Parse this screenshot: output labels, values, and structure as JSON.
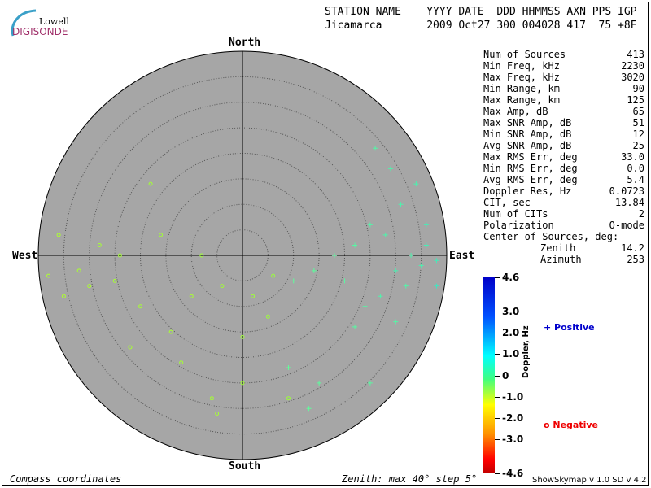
{
  "logo": {
    "line1": "Lowell",
    "line2": "DIGISONDE"
  },
  "header": {
    "labels": "STATION NAME    YYYY DATE  DDD HHMMSS AXN PPS IGP",
    "values": "Jicamarca       2009 Oct27 300 004028 417  75 +8F"
  },
  "compass": {
    "north": "North",
    "south": "South",
    "east": "East",
    "west": "West"
  },
  "stats": [
    [
      "Num of Sources",
      "413"
    ],
    [
      "Min Freq, kHz",
      "2230"
    ],
    [
      "Max Freq, kHz",
      "3020"
    ],
    [
      "Min Range, km",
      "90"
    ],
    [
      "Max Range, km",
      "125"
    ],
    [
      "Max Amp, dB",
      "65"
    ],
    [
      "Max SNR Amp, dB",
      "51"
    ],
    [
      "Min SNR Amp, dB",
      "12"
    ],
    [
      "Avg SNR Amp, dB",
      "25"
    ],
    [
      "Max RMS Err, deg",
      "33.0"
    ],
    [
      "Min RMS Err, deg",
      "0.0"
    ],
    [
      "Avg RMS Err, deg",
      "5.4"
    ],
    [
      "Doppler Res, Hz",
      "0.0723"
    ],
    [
      "CIT, sec",
      "13.84"
    ],
    [
      "Num of CITs",
      "2"
    ],
    [
      "Polarization",
      "O-mode"
    ]
  ],
  "center": {
    "title": "Center of Sources, deg:",
    "zenith_label": "Zenith",
    "zenith": "14.2",
    "azimuth_label": "Azimuth",
    "azimuth": "253"
  },
  "colorbar": {
    "title": "Doppler, Hz",
    "ticks": [
      "4.6",
      "3.0",
      "2.0",
      "1.0",
      "0",
      "-1.0",
      "-2.0",
      "-3.0",
      "-4.6"
    ]
  },
  "legend": {
    "positive": "Positive",
    "negative": "Negative",
    "positive_color": "#0000cc",
    "negative_color": "#ee0000"
  },
  "footer": {
    "left": "Compass coordinates",
    "mid": "Zenith: max 40°  step 5°",
    "right": "ShowSkymap v 1.0   SD v 4.2"
  },
  "chart_data": {
    "type": "scatter",
    "zenith_max": 40,
    "zenith_step": 5,
    "points_east_north_deg": [
      [
        30,
        -3,
        1.2
      ],
      [
        33,
        0,
        1.0
      ],
      [
        35,
        -2,
        1.1
      ],
      [
        28,
        4,
        0.9
      ],
      [
        36,
        2,
        1.3
      ],
      [
        32,
        -6,
        0.8
      ],
      [
        27,
        -8,
        0.9
      ],
      [
        38,
        -1,
        1.5
      ],
      [
        25,
        6,
        0.8
      ],
      [
        31,
        10,
        1.0
      ],
      [
        34,
        14,
        1.1
      ],
      [
        29,
        17,
        0.9
      ],
      [
        26,
        21,
        0.7
      ],
      [
        36,
        6,
        1.4
      ],
      [
        24,
        -10,
        0.6
      ],
      [
        20,
        -5,
        0.5
      ],
      [
        18,
        0,
        0.4
      ],
      [
        22,
        2,
        0.6
      ],
      [
        14,
        -3,
        0.3
      ],
      [
        10,
        -5,
        0.2
      ],
      [
        38,
        -6,
        1.8
      ],
      [
        30,
        -13,
        0.7
      ],
      [
        22,
        -14,
        0.5
      ],
      [
        15,
        -25,
        0.3
      ],
      [
        13,
        -30,
        0.2
      ],
      [
        25,
        -25,
        0.5
      ],
      [
        9,
        -22,
        0.1
      ],
      [
        5,
        -12,
        -0.2
      ],
      [
        0,
        -16,
        -0.4
      ],
      [
        -4,
        -6,
        -0.5
      ],
      [
        2,
        -8,
        -0.3
      ],
      [
        6,
        -4,
        -0.1
      ],
      [
        -10,
        -8,
        -0.8
      ],
      [
        -14,
        -15,
        -0.8
      ],
      [
        -20,
        -10,
        -0.7
      ],
      [
        -25,
        -5,
        -0.7
      ],
      [
        -30,
        -6,
        -0.9
      ],
      [
        -32,
        -3,
        -0.8
      ],
      [
        -28,
        2,
        -0.6
      ],
      [
        -35,
        -8,
        -1.0
      ],
      [
        -38,
        -4,
        -1.0
      ],
      [
        -22,
        -18,
        -0.7
      ],
      [
        -12,
        -21,
        -0.6
      ],
      [
        -6,
        -28,
        -0.6
      ],
      [
        -16,
        4,
        -0.5
      ],
      [
        -24,
        0,
        -0.6
      ],
      [
        -36,
        4,
        -0.9
      ],
      [
        -18,
        14,
        -0.5
      ],
      [
        -8,
        0,
        -0.3
      ],
      [
        0,
        -25,
        -0.5
      ],
      [
        9,
        -28,
        -0.2
      ],
      [
        -5,
        -31,
        -0.7
      ]
    ]
  }
}
